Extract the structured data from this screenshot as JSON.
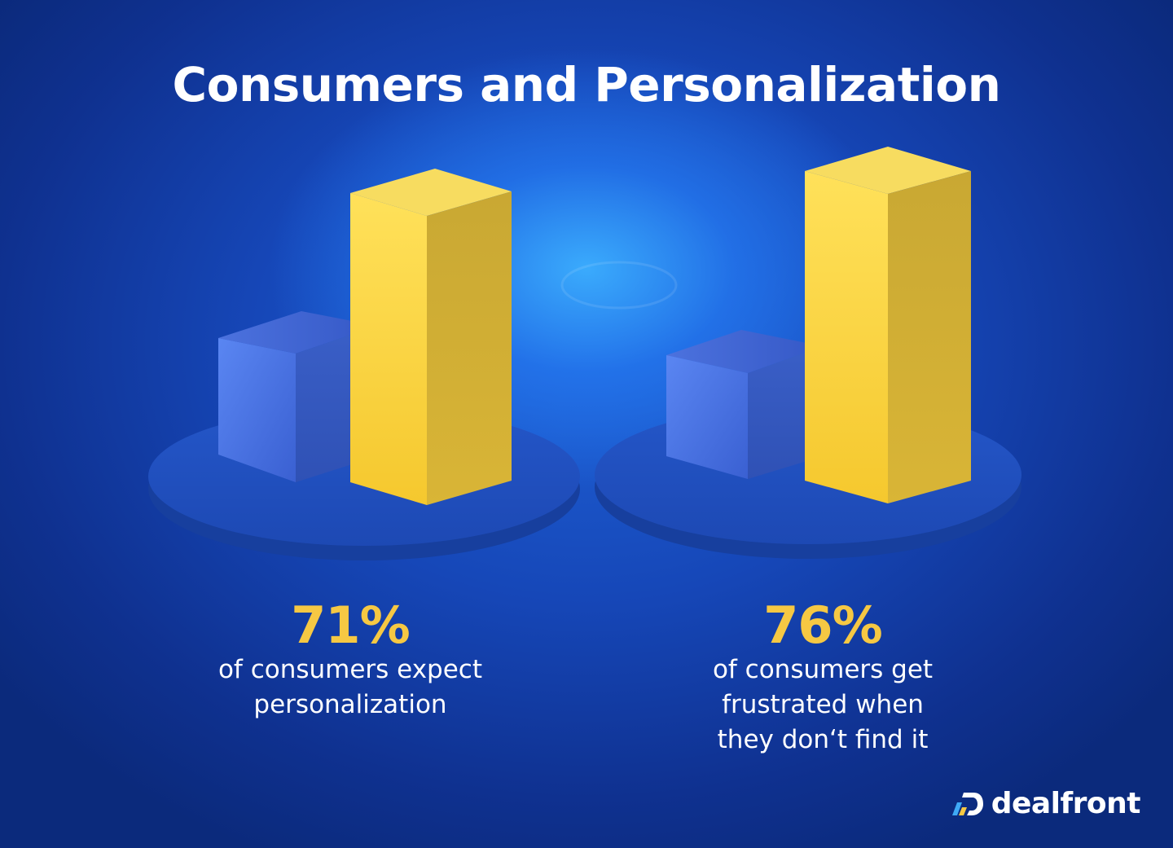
{
  "title": "Consumers and Personalization",
  "chart_data": {
    "type": "bar",
    "title": "Consumers and Personalization",
    "groups": [
      {
        "value_label": "71%",
        "value": 71,
        "description": "of consumers expect\npersonalization"
      },
      {
        "value_label": "76%",
        "value": 76,
        "description": "of consumers get\nfrustrated when\nthey don‘t find it"
      }
    ]
  },
  "colors": {
    "accent": "#f6c843",
    "background": "#1647b8",
    "cube": "#3b63d6"
  },
  "logo": {
    "text": "dealfront",
    "icon": "dealfront-logo-icon"
  }
}
